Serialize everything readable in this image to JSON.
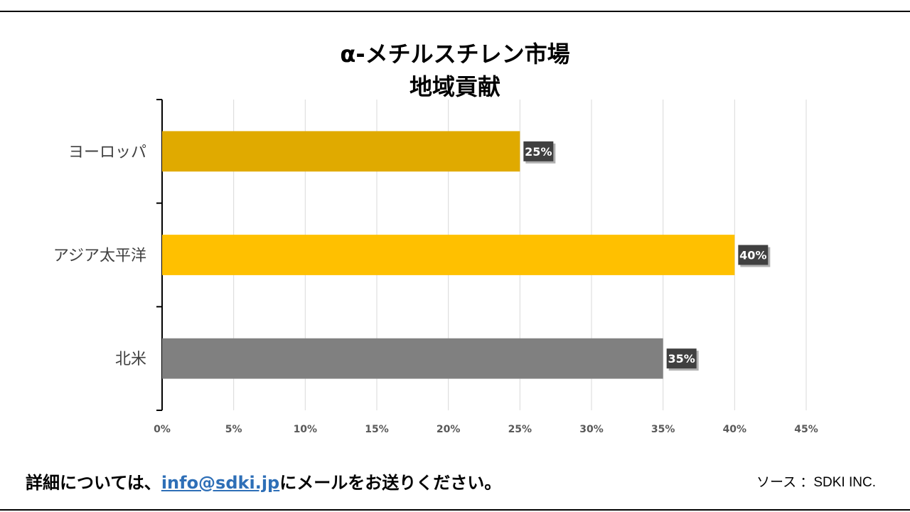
{
  "chart_data": {
    "type": "bar",
    "orientation": "horizontal",
    "title": [
      "α-メチルスチレン市場",
      "地域貢献"
    ],
    "categories": [
      "ヨーロッパ",
      "アジア太平洋",
      "北米"
    ],
    "values": [
      25,
      40,
      35
    ],
    "data_labels": [
      "25%",
      "40%",
      "35%"
    ],
    "colors": [
      "#e0aa00",
      "#ffc000",
      "#808080"
    ],
    "xlim": [
      0,
      45
    ],
    "xticks": [
      "0%",
      "5%",
      "10%",
      "15%",
      "20%",
      "25%",
      "30%",
      "35%",
      "40%",
      "45%"
    ],
    "grid": true,
    "legend": "none"
  },
  "footer": {
    "contact_prefix": "詳細については、",
    "email": "info@sdki.jp",
    "contact_suffix": "にメールをお送りください。",
    "source": "ソース ：SDKI INC."
  }
}
